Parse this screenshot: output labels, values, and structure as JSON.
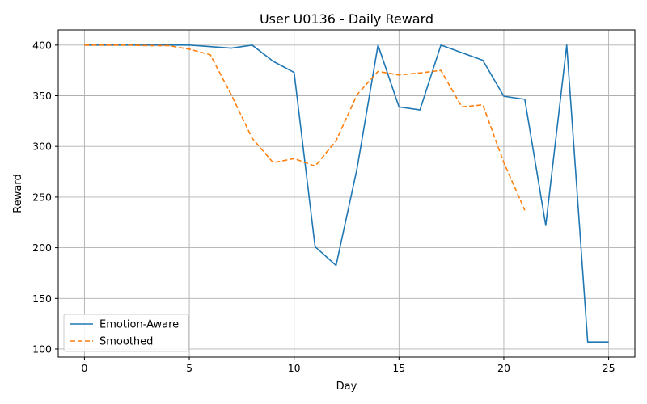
{
  "chart_data": {
    "type": "line",
    "title": "User U0136 - Daily Reward",
    "xlabel": "Day",
    "ylabel": "Reward",
    "xlim": [
      -1.25,
      26.25
    ],
    "ylim": [
      92,
      415
    ],
    "xticks": [
      0,
      5,
      10,
      15,
      20,
      25
    ],
    "yticks": [
      100,
      150,
      200,
      250,
      300,
      350,
      400
    ],
    "grid": true,
    "legend_position": "lower-left",
    "series": [
      {
        "name": "Emotion-Aware",
        "color": "#1f77b4",
        "style": "solid",
        "x": [
          0,
          1,
          2,
          3,
          4,
          5,
          6,
          7,
          8,
          9,
          10,
          11,
          12,
          13,
          14,
          15,
          16,
          17,
          18,
          19,
          20,
          21,
          22,
          23,
          24,
          25
        ],
        "y": [
          400,
          400,
          400,
          400,
          400,
          400,
          398.5,
          397,
          400,
          384,
          373,
          201,
          182.5,
          278,
          400,
          339,
          336,
          400,
          392.5,
          385,
          349.5,
          346.5,
          222,
          400,
          107,
          107
        ]
      },
      {
        "name": "Smoothed",
        "color": "#ff7f0e",
        "style": "dashed",
        "x": [
          0,
          1,
          2,
          3,
          4,
          5,
          6,
          7,
          8,
          9,
          10,
          11,
          12,
          13,
          14,
          15,
          16,
          17,
          18,
          19,
          20,
          21
        ],
        "y": [
          400,
          400,
          400,
          399.5,
          399.5,
          396,
          390.5,
          351,
          308,
          284,
          288,
          280.5,
          305.5,
          351,
          374,
          370.5,
          372.5,
          375,
          339,
          341,
          284,
          237
        ]
      }
    ]
  }
}
